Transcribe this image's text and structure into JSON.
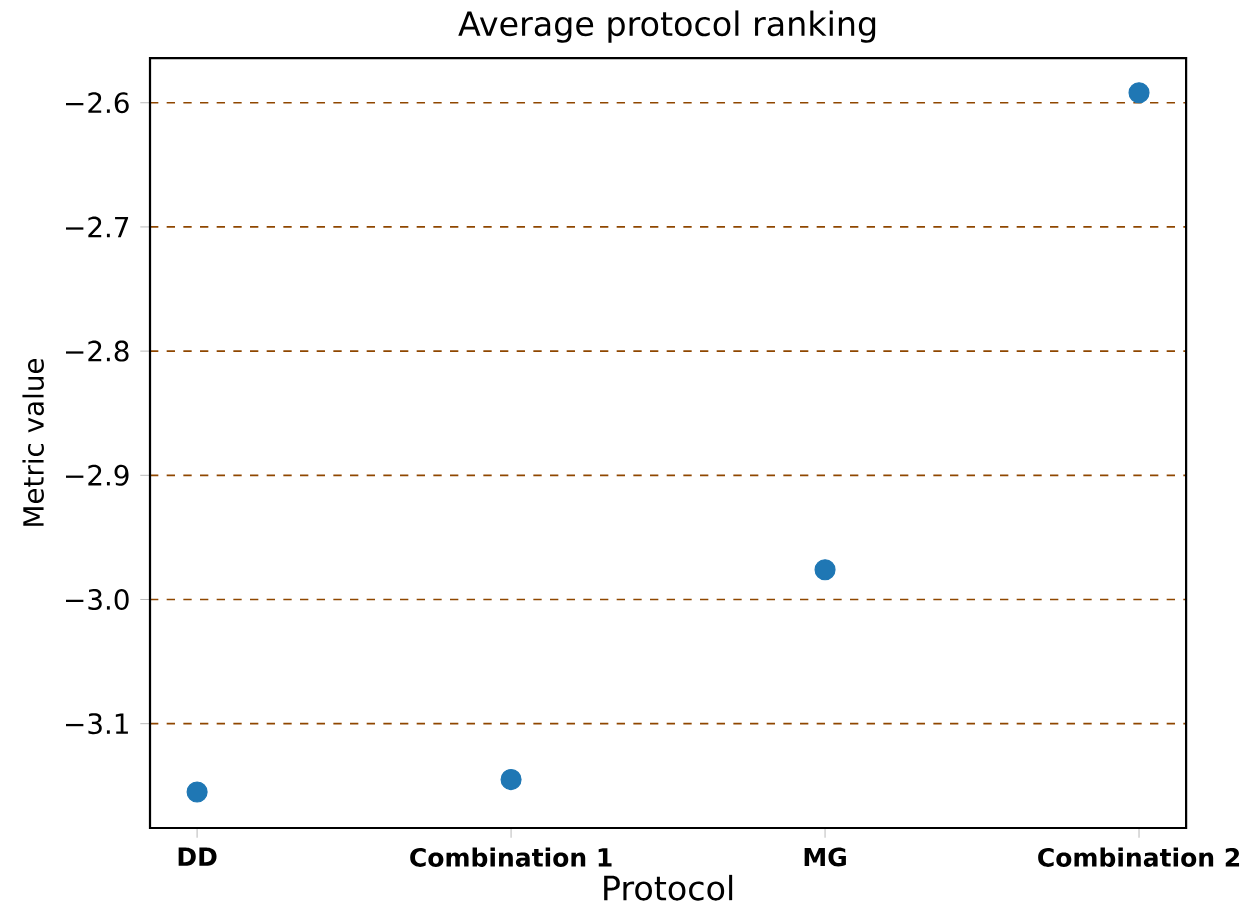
{
  "chart_data": {
    "type": "scatter",
    "title": "Average protocol ranking",
    "xlabel": "Protocol",
    "ylabel": "Metric value",
    "categories": [
      "DD",
      "Combination 1",
      "MG",
      "Combination 2"
    ],
    "values": [
      -3.155,
      -3.145,
      -2.976,
      -2.592
    ],
    "color": "#1f77b4",
    "marker": "circle",
    "ylim": [
      -3.184,
      -2.564
    ],
    "yticks": [
      {
        "value": -3.1,
        "label": "−3.1"
      },
      {
        "value": -3.0,
        "label": "−3.0"
      },
      {
        "value": -2.9,
        "label": "−2.9"
      },
      {
        "value": -2.8,
        "label": "−2.8"
      },
      {
        "value": -2.7,
        "label": "−2.7"
      },
      {
        "value": -2.6,
        "label": "−2.6"
      }
    ],
    "grid": "y"
  }
}
